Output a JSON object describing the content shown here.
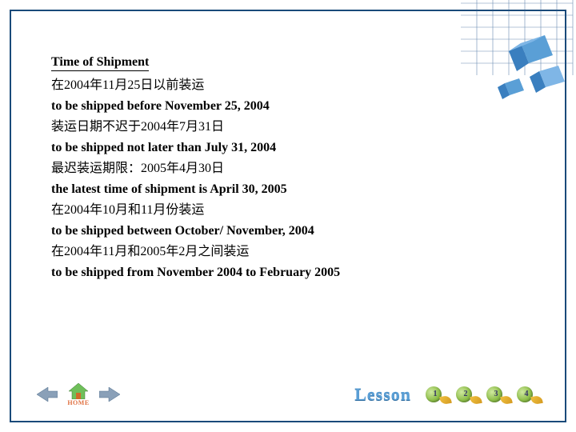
{
  "heading": "Time of Shipment",
  "lines": [
    {
      "cls": "cjk",
      "text": "在2004年11月25日以前装运"
    },
    {
      "cls": "en",
      "text": "to be shipped before November 25, 2004"
    },
    {
      "cls": "cjk",
      "text": "装运日期不迟于2004年7月31日"
    },
    {
      "cls": "en",
      "text": "to be shipped not later than July 31, 2004"
    },
    {
      "cls": "cjk",
      "text": "最迟装运期限：2005年4月30日"
    },
    {
      "cls": "en",
      "text": "the latest time of shipment is April 30, 2005"
    },
    {
      "cls": "cjk",
      "text": "在2004年10月和11月份装运"
    },
    {
      "cls": "en",
      "text": "to be shipped between October/ November, 2004"
    },
    {
      "cls": "cjk",
      "text": "在2004年11月和2005年2月之间装运"
    },
    {
      "cls": "en",
      "text": "to be shipped from November 2004 to February 2005"
    }
  ],
  "footer": {
    "home_label": "HOME",
    "lesson_label": "Lesson",
    "numbers": [
      "1",
      "2",
      "3",
      "4"
    ]
  },
  "colors": {
    "frame": "#1a4a7a",
    "lesson_text": "#5a9fd6",
    "home_text": "#e07040",
    "arrow": "#8aa0b8"
  },
  "deco": {
    "grid_color": "#2a5a90",
    "cube1": "#7fb6e6",
    "cube2": "#5a9fd6",
    "cube3": "#3a7fbf"
  }
}
